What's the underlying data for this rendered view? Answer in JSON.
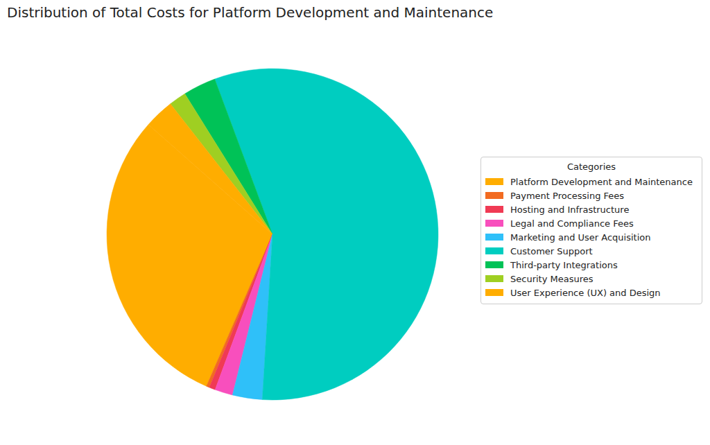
{
  "chart_data": {
    "type": "pie",
    "title": "Distribution of Total Costs for Platform Development and Maintenance",
    "legend_title": "Categories",
    "legend": "right",
    "categories": [
      "Platform Development and Maintenance",
      "Payment Processing Fees",
      "Hosting and Infrastructure",
      "Legal and Compliance Fees",
      "Marketing and User Acquisition",
      "Customer Support",
      "Third-party Integrations",
      "Security Measures",
      "User Experience (UX) and Design"
    ],
    "values": [
      30,
      0.3,
      0.6,
      1.75,
      2.9,
      56.65,
      3.2,
      1.7,
      2.9
    ],
    "colors": [
      "#ffad00",
      "#f26b21",
      "#f03a54",
      "#f84fbd",
      "#2fc0f9",
      "#00cdc0",
      "#00c257",
      "#9fcf22",
      "#ffad00"
    ]
  }
}
